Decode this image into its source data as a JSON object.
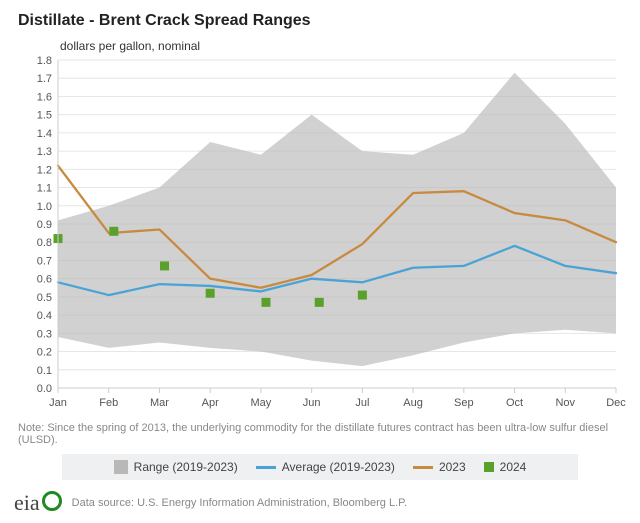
{
  "title": "Distillate - Brent Crack Spread Ranges",
  "y_axis_title": "dollars per gallon, nominal",
  "note": "Note: Since the spring of 2013, the underlying commodity for the distillate futures contract has been ultra-low sulfur diesel (ULSD).",
  "source": "Data source: U.S. Energy Information Administration, Bloomberg L.P.",
  "eia_label": "eia",
  "legend": {
    "range": "Range (2019-2023)",
    "average": "Average (2019-2023)",
    "y2023": "2023",
    "y2024": "2024"
  },
  "chart": {
    "type": "line-range",
    "categories": [
      "Jan",
      "Feb",
      "Mar",
      "Apr",
      "May",
      "Jun",
      "Jul",
      "Aug",
      "Sep",
      "Oct",
      "Nov",
      "Dec"
    ],
    "ylim": [
      0.0,
      1.8
    ],
    "ytick_step": 0.1,
    "yticks": [
      "0.0",
      "0.1",
      "0.2",
      "0.3",
      "0.4",
      "0.5",
      "0.6",
      "0.7",
      "0.8",
      "0.9",
      "1.0",
      "1.1",
      "1.2",
      "1.3",
      "1.4",
      "1.5",
      "1.6",
      "1.7",
      "1.8"
    ],
    "background_color": "#ffffff",
    "grid_color": "#e6e6e6",
    "axis_color": "#cccccc",
    "tick_label_fontsize": 11,
    "colors": {
      "range_fill": "#b8b8b8",
      "range_opacity": 0.65,
      "average_line": "#4aa3d6",
      "y2023_line": "#c78a3f",
      "y2024_marker": "#5aa02c"
    },
    "line_width": 2.3,
    "marker_size": 9,
    "range": {
      "high": [
        0.92,
        1.0,
        1.1,
        1.35,
        1.28,
        1.5,
        1.3,
        1.28,
        1.4,
        1.73,
        1.45,
        1.1
      ],
      "low": [
        0.28,
        0.22,
        0.25,
        0.22,
        0.2,
        0.15,
        0.12,
        0.18,
        0.25,
        0.3,
        0.32,
        0.3
      ]
    },
    "average": [
      0.58,
      0.51,
      0.57,
      0.56,
      0.53,
      0.6,
      0.58,
      0.66,
      0.67,
      0.78,
      0.67,
      0.63
    ],
    "y2023": [
      1.22,
      0.85,
      0.87,
      0.6,
      0.55,
      0.62,
      0.79,
      1.07,
      1.08,
      0.96,
      0.92,
      0.8
    ],
    "y2024": {
      "points": [
        {
          "x": 0.0,
          "y": 0.82
        },
        {
          "x": 1.1,
          "y": 0.86
        },
        {
          "x": 2.1,
          "y": 0.67
        },
        {
          "x": 3.0,
          "y": 0.52
        },
        {
          "x": 4.1,
          "y": 0.47
        },
        {
          "x": 5.15,
          "y": 0.47
        },
        {
          "x": 6.0,
          "y": 0.51
        }
      ]
    }
  }
}
